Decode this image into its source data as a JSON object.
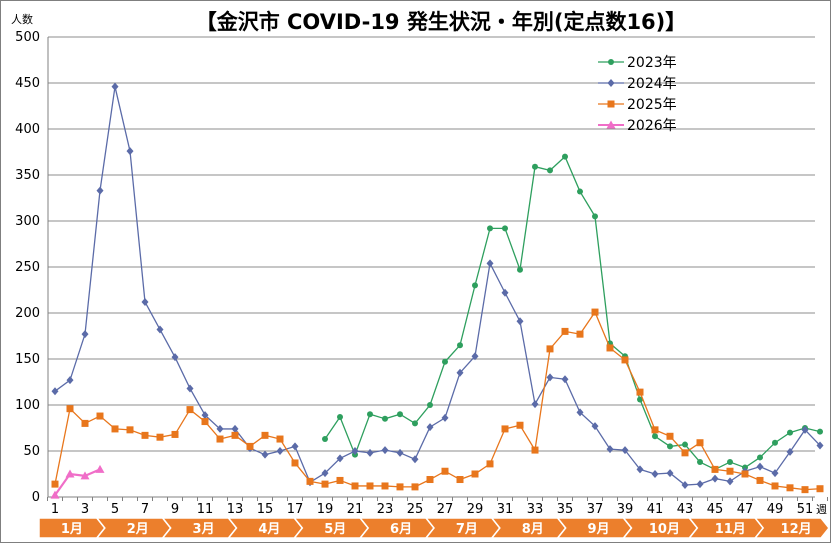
{
  "chart_data": {
    "type": "line",
    "title": "【金沢市 COVID-19 発生状況・年別(定点数16)】",
    "ylabel": "人数",
    "xlabel": "週",
    "ylim": [
      0,
      500
    ],
    "yticks": [
      0,
      50,
      100,
      150,
      200,
      250,
      300,
      350,
      400,
      450,
      500
    ],
    "xlim": [
      1,
      53
    ],
    "xticks": [
      1,
      3,
      5,
      7,
      9,
      11,
      13,
      15,
      17,
      19,
      21,
      23,
      25,
      27,
      29,
      31,
      33,
      35,
      37,
      39,
      41,
      43,
      45,
      47,
      49,
      51
    ],
    "grid": "horizontal",
    "legend_position": "top-right",
    "months": [
      "1月",
      "2月",
      "3月",
      "4月",
      "5月",
      "6月",
      "7月",
      "8月",
      "9月",
      "10月",
      "11月",
      "12月"
    ],
    "series": [
      {
        "name": "2023年",
        "color": "#2e9f5e",
        "marker": "circle",
        "x": [
          19,
          20,
          21,
          22,
          23,
          24,
          25,
          26,
          27,
          28,
          29,
          30,
          31,
          32,
          33,
          34,
          35,
          36,
          37,
          38,
          39,
          40,
          41,
          42,
          43,
          44,
          45,
          46,
          47,
          48,
          49,
          50,
          51,
          52
        ],
        "values": [
          63,
          87,
          46,
          90,
          85,
          90,
          80,
          100,
          147,
          165,
          230,
          292,
          292,
          247,
          359,
          355,
          370,
          332,
          305,
          167,
          153,
          106,
          66,
          55,
          57,
          38,
          30,
          38,
          32,
          43,
          59,
          70,
          75,
          71
        ]
      },
      {
        "name": "2024年",
        "color": "#5b6ba8",
        "marker": "diamond",
        "x": [
          1,
          2,
          3,
          4,
          5,
          6,
          7,
          8,
          9,
          10,
          11,
          12,
          13,
          14,
          15,
          16,
          17,
          18,
          19,
          20,
          21,
          22,
          23,
          24,
          25,
          26,
          27,
          28,
          29,
          30,
          31,
          32,
          33,
          34,
          35,
          36,
          37,
          38,
          39,
          40,
          41,
          42,
          43,
          44,
          45,
          46,
          47,
          48,
          49,
          50,
          51,
          52
        ],
        "values": [
          115,
          127,
          177,
          333,
          446,
          376,
          212,
          182,
          152,
          118,
          89,
          74,
          74,
          53,
          46,
          50,
          55,
          16,
          26,
          42,
          50,
          48,
          51,
          48,
          41,
          76,
          86,
          135,
          153,
          254,
          222,
          191,
          101,
          130,
          128,
          92,
          77,
          52,
          51,
          30,
          25,
          26,
          13,
          14,
          20,
          17,
          28,
          33,
          26,
          49,
          73,
          56
        ]
      },
      {
        "name": "2025年",
        "color": "#e8761c",
        "marker": "square",
        "x": [
          1,
          2,
          3,
          4,
          5,
          6,
          7,
          8,
          9,
          10,
          11,
          12,
          13,
          14,
          15,
          16,
          17,
          18,
          19,
          20,
          21,
          22,
          23,
          24,
          25,
          26,
          27,
          28,
          29,
          30,
          31,
          32,
          33,
          34,
          35,
          36,
          37,
          38,
          39,
          40,
          41,
          42,
          43,
          44,
          45,
          46,
          47,
          48,
          49,
          50,
          51,
          52
        ],
        "values": [
          14,
          96,
          80,
          88,
          74,
          73,
          67,
          65,
          68,
          95,
          82,
          63,
          67,
          55,
          67,
          63,
          37,
          17,
          14,
          18,
          12,
          12,
          12,
          11,
          11,
          19,
          28,
          19,
          25,
          36,
          74,
          78,
          51,
          161,
          180,
          177,
          201,
          162,
          149,
          114,
          73,
          66,
          48,
          59,
          30,
          28,
          25,
          18,
          12,
          10,
          8,
          9
        ]
      },
      {
        "name": "2026年",
        "color": "#f06ec8",
        "marker": "triangle",
        "x": [
          1,
          2,
          3,
          4
        ],
        "values": [
          2,
          25,
          23,
          30
        ]
      }
    ]
  }
}
